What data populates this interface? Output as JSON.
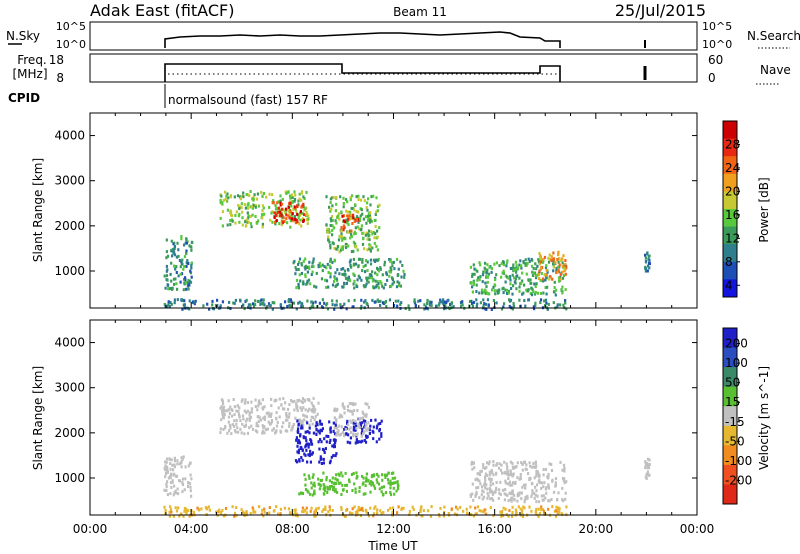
{
  "header": {
    "station": "Adak East (fitACF)",
    "beam": "Beam 11",
    "date": "25/Jul/2015"
  },
  "panel_labels": {
    "nsky": "N.Sky",
    "freq": "Freq.",
    "freq_unit": "[MHz]",
    "cpid": "CPID",
    "nsearch": "N.Search",
    "nave": "Nave"
  },
  "nsky_ticks": [
    "10^5",
    "10^0"
  ],
  "nsearch_ticks": [
    "10^5",
    "10^0"
  ],
  "freq_ticks": [
    "18",
    "8"
  ],
  "nave_ticks": [
    "60",
    "0"
  ],
  "cpid_text": "normalsound (fast) 157 RF",
  "colors": {
    "power_scale": [
      "#1414e0",
      "#1e4fb4",
      "#2e7f8e",
      "#3a9a5a",
      "#58c83c",
      "#c8c832",
      "#f0a01e",
      "#f06414",
      "#e82810",
      "#cc0000"
    ],
    "velocity_scale": [
      "#2020c8",
      "#2a4ec0",
      "#3a8a6a",
      "#58c030",
      "#c0c0c0",
      "#e6b830",
      "#f08c20",
      "#f05020",
      "#e02818"
    ],
    "axis": "#000000"
  },
  "chart_data": [
    {
      "type": "heatmap",
      "title": "Power",
      "ylabel": "Slant Range [km]",
      "colorbar_label": "Power [dB]",
      "colorbar_ticks": [
        "28",
        "24",
        "20",
        "16",
        "12",
        "8",
        "4"
      ],
      "ylim": [
        180,
        4500
      ],
      "y_ticks": [
        "4000",
        "3000",
        "2000",
        "1000"
      ],
      "xlim": [
        0,
        24
      ],
      "x_ticks": [
        "00:00",
        "04:00",
        "08:00",
        "12:00",
        "16:00",
        "20:00",
        "00:00"
      ],
      "grid": false,
      "regions": [
        {
          "t": [
            5.1,
            8.6
          ],
          "r": [
            2000,
            2800
          ],
          "v": 14
        },
        {
          "t": [
            7.2,
            8.5
          ],
          "r": [
            2050,
            2550
          ],
          "v": 26
        },
        {
          "t": [
            9.3,
            11.4
          ],
          "r": [
            1450,
            2700
          ],
          "v": 13
        },
        {
          "t": [
            9.9,
            10.6
          ],
          "r": [
            1900,
            2300
          ],
          "v": 25
        },
        {
          "t": [
            8.0,
            12.4
          ],
          "r": [
            650,
            1300
          ],
          "v": 10
        },
        {
          "t": [
            2.9,
            4.0
          ],
          "r": [
            600,
            1800
          ],
          "v": 9
        },
        {
          "t": [
            15.0,
            18.8
          ],
          "r": [
            500,
            1300
          ],
          "v": 11
        },
        {
          "t": [
            17.6,
            18.8
          ],
          "r": [
            850,
            1450
          ],
          "v": 20
        },
        {
          "t": [
            2.9,
            18.8
          ],
          "r": [
            180,
            400
          ],
          "v": 8
        },
        {
          "t": [
            21.9,
            22.1
          ],
          "r": [
            1000,
            1450
          ],
          "v": 8
        }
      ]
    },
    {
      "type": "heatmap",
      "title": "Velocity",
      "ylabel": "Slant Range [km]",
      "xlabel": "Time UT",
      "colorbar_label": "Velocity [m s^-1]",
      "colorbar_ticks": [
        "200",
        "100",
        "50",
        "15",
        "-15",
        "-50",
        "-100",
        "-200"
      ],
      "ylim": [
        180,
        4500
      ],
      "y_ticks": [
        "4000",
        "3000",
        "2000",
        "1000"
      ],
      "xlim": [
        0,
        24
      ],
      "x_ticks": [
        "00:00",
        "04:00",
        "08:00",
        "12:00",
        "16:00",
        "20:00",
        "00:00"
      ],
      "grid": false,
      "regions": [
        {
          "t": [
            5.1,
            9.0
          ],
          "r": [
            2000,
            2800
          ],
          "v": 0
        },
        {
          "t": [
            8.1,
            9.7
          ],
          "r": [
            1350,
            2300
          ],
          "v": 220
        },
        {
          "t": [
            10.0,
            11.5
          ],
          "r": [
            1800,
            2350
          ],
          "v": 230
        },
        {
          "t": [
            9.6,
            11.0
          ],
          "r": [
            1950,
            2700
          ],
          "v": 0
        },
        {
          "t": [
            8.2,
            12.2
          ],
          "r": [
            650,
            1150
          ],
          "v": 35
        },
        {
          "t": [
            2.9,
            4.0
          ],
          "r": [
            600,
            1500
          ],
          "v": 0
        },
        {
          "t": [
            15.0,
            18.8
          ],
          "r": [
            500,
            1400
          ],
          "v": 0
        },
        {
          "t": [
            2.9,
            18.8
          ],
          "r": [
            180,
            400
          ],
          "v": -40
        },
        {
          "t": [
            21.9,
            22.1
          ],
          "r": [
            1000,
            1450
          ],
          "v": 0
        }
      ]
    }
  ]
}
